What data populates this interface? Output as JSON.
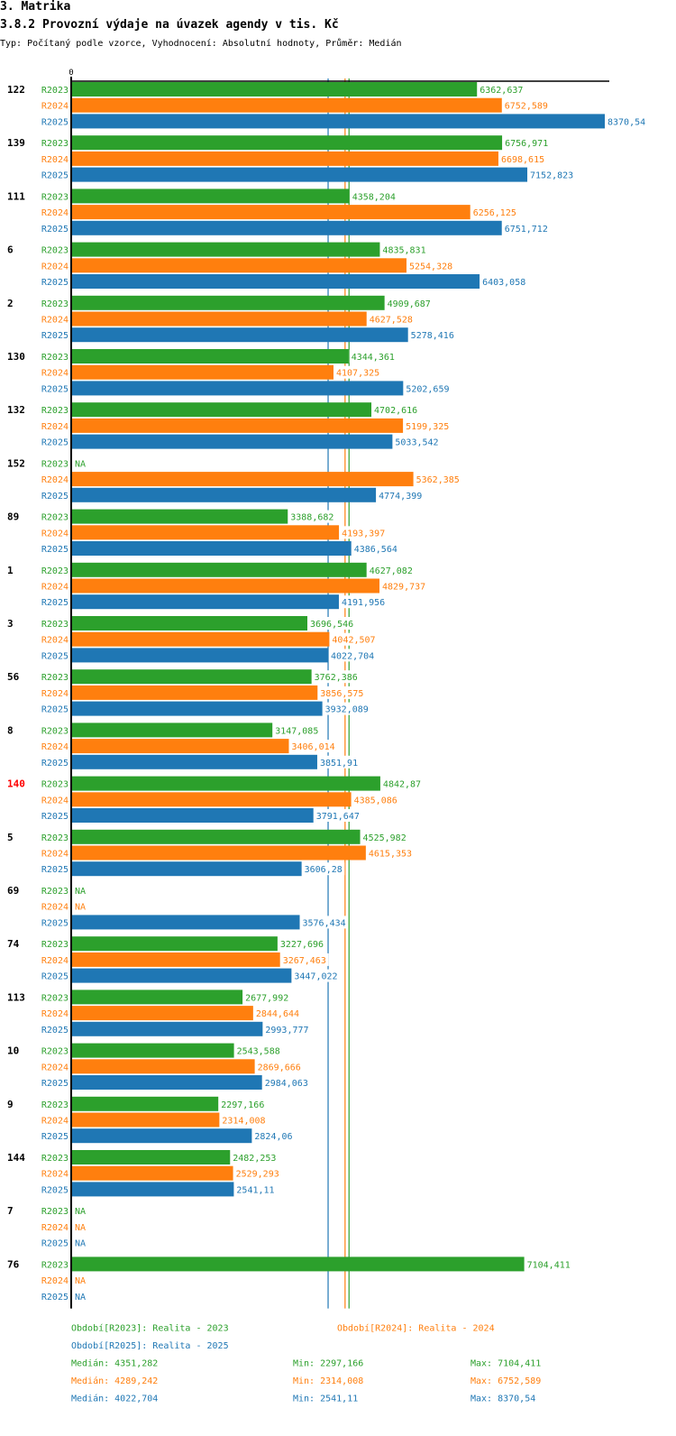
{
  "header": {
    "section": "3. Matrika",
    "title": "3.8.2 Provozní výdaje na úvazek agendy v tis. Kč",
    "subtitle": "Typ: Počítaný podle vzorce, Vyhodnocení: Absolutní hodnoty, Průměr: Medián"
  },
  "chart_data": {
    "type": "bar",
    "orientation": "horizontal",
    "title": "3.8.2 Provozní výdaje na úvazek agendy v tis. Kč",
    "xlabel": "",
    "ylabel": "",
    "axis_zero_label": "0",
    "xlim": [
      0,
      8370.54
    ],
    "grid": false,
    "series_names": [
      "R2023",
      "R2024",
      "R2025"
    ],
    "series_colors": {
      "R2023": "#2ca02c",
      "R2024": "#ff7f0e",
      "R2025": "#1f77b4"
    },
    "na_label": "NA",
    "decimal_separator": ",",
    "categories": [
      {
        "label": "122",
        "highlight": false,
        "values": [
          6362.637,
          6752.589,
          8370.54
        ]
      },
      {
        "label": "139",
        "highlight": false,
        "values": [
          6756.971,
          6698.615,
          7152.823
        ]
      },
      {
        "label": "111",
        "highlight": false,
        "values": [
          4358.204,
          6256.125,
          6751.712
        ]
      },
      {
        "label": "6",
        "highlight": false,
        "values": [
          4835.831,
          5254.328,
          6403.058
        ]
      },
      {
        "label": "2",
        "highlight": false,
        "values": [
          4909.687,
          4627.528,
          5278.416
        ]
      },
      {
        "label": "130",
        "highlight": false,
        "values": [
          4344.361,
          4107.325,
          5202.659
        ]
      },
      {
        "label": "132",
        "highlight": false,
        "values": [
          4702.616,
          5199.325,
          5033.542
        ]
      },
      {
        "label": "152",
        "highlight": false,
        "values": [
          null,
          5362.385,
          4774.399
        ]
      },
      {
        "label": "89",
        "highlight": false,
        "values": [
          3388.682,
          4193.397,
          4386.564
        ]
      },
      {
        "label": "1",
        "highlight": false,
        "values": [
          4627.082,
          4829.737,
          4191.956
        ]
      },
      {
        "label": "3",
        "highlight": false,
        "values": [
          3696.546,
          4042.507,
          4022.704
        ]
      },
      {
        "label": "56",
        "highlight": false,
        "values": [
          3762.386,
          3856.575,
          3932.089
        ]
      },
      {
        "label": "8",
        "highlight": false,
        "values": [
          3147.085,
          3406.014,
          3851.91
        ]
      },
      {
        "label": "140",
        "highlight": true,
        "values": [
          4842.87,
          4385.086,
          3791.647
        ]
      },
      {
        "label": "5",
        "highlight": false,
        "values": [
          4525.982,
          4615.353,
          3606.28
        ]
      },
      {
        "label": "69",
        "highlight": false,
        "values": [
          null,
          null,
          3576.434
        ]
      },
      {
        "label": "74",
        "highlight": false,
        "values": [
          3227.696,
          3267.463,
          3447.022
        ]
      },
      {
        "label": "113",
        "highlight": false,
        "values": [
          2677.992,
          2844.644,
          2993.777
        ]
      },
      {
        "label": "10",
        "highlight": false,
        "values": [
          2543.588,
          2869.666,
          2984.063
        ]
      },
      {
        "label": "9",
        "highlight": false,
        "values": [
          2297.166,
          2314.008,
          2824.06
        ]
      },
      {
        "label": "144",
        "highlight": false,
        "values": [
          2482.253,
          2529.293,
          2541.11
        ]
      },
      {
        "label": "7",
        "highlight": false,
        "values": [
          null,
          null,
          null
        ]
      },
      {
        "label": "76",
        "highlight": false,
        "values": [
          7104.411,
          null,
          null
        ]
      }
    ],
    "medians": {
      "R2023": 4351.282,
      "R2024": 4289.242,
      "R2025": 4022.704
    },
    "legend": [
      {
        "series": "R2023",
        "text": "Období[R2023]: Realita - 2023"
      },
      {
        "series": "R2024",
        "text": "Období[R2024]: Realita - 2024"
      },
      {
        "series": "R2025",
        "text": "Období[R2025]: Realita - 2025"
      }
    ],
    "stats": [
      {
        "series": "R2023",
        "median": "Medián: 4351,282",
        "min": "Min: 2297,166",
        "max": "Max: 7104,411"
      },
      {
        "series": "R2024",
        "median": "Medián: 4289,242",
        "min": "Min: 2314,008",
        "max": "Max: 6752,589"
      },
      {
        "series": "R2025",
        "median": "Medián: 4022,704",
        "min": "Min: 2541,11",
        "max": "Max: 8370,54"
      }
    ]
  }
}
